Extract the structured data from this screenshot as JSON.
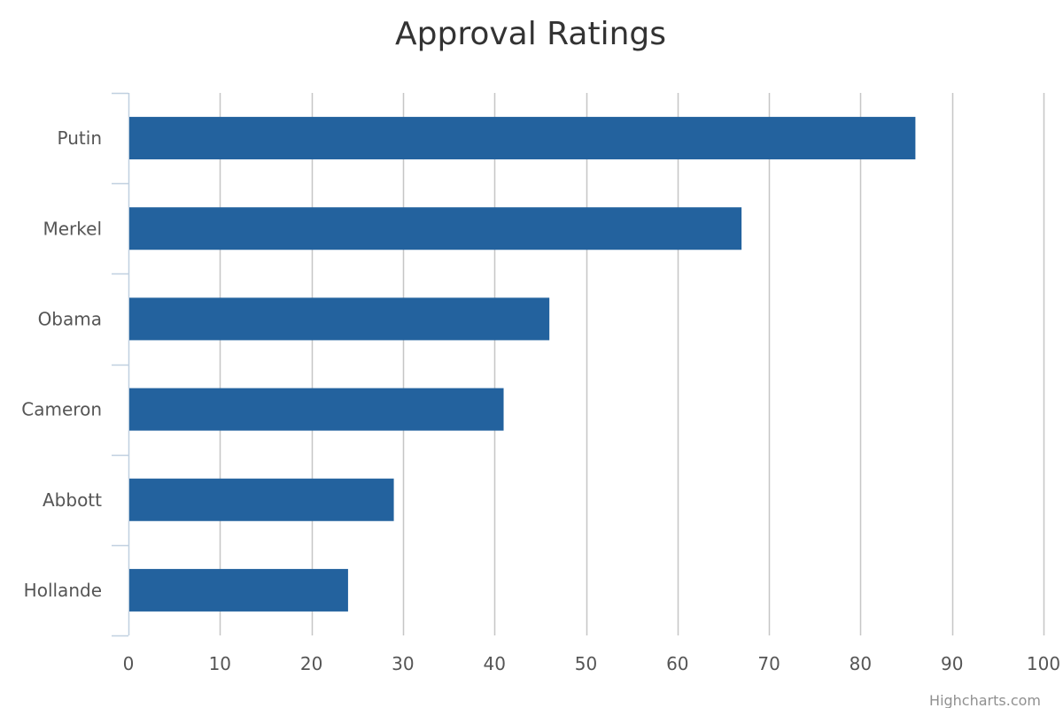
{
  "colors": {
    "bar": "#23629e",
    "grid": "#c6c6c6",
    "axis_line": "#c0d0e0",
    "text": "#555555",
    "title": "#333333",
    "credit": "#909090"
  },
  "credit": "Highcharts.com",
  "chart_data": {
    "type": "bar",
    "orientation": "horizontal",
    "title": "Approval Ratings",
    "xlabel": "",
    "ylabel": "",
    "categories": [
      "Putin",
      "Merkel",
      "Obama",
      "Cameron",
      "Abbott",
      "Hollande"
    ],
    "values": [
      86,
      67,
      46,
      41,
      29,
      24
    ],
    "value_axis": {
      "min": 0,
      "max": 100,
      "ticks": [
        "0",
        "10",
        "20",
        "30",
        "40",
        "50",
        "60",
        "70",
        "80",
        "90",
        "100"
      ]
    },
    "grid": true,
    "legend": "none"
  }
}
